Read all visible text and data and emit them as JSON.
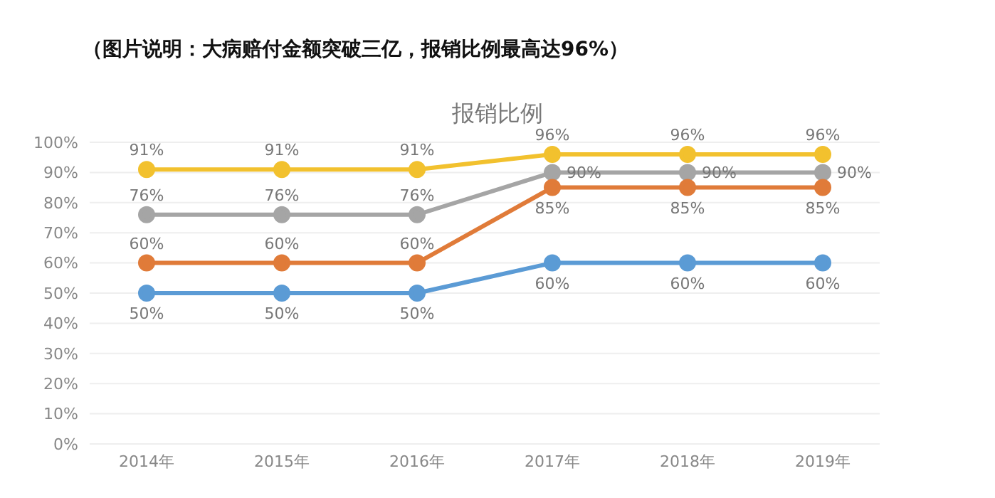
{
  "chart_data": {
    "type": "line",
    "title": "报销比例",
    "annotations": [
      "（图片说明：大病赔付金额突破三亿，报销比例最高达96%）"
    ],
    "categories": [
      "2014年",
      "2015年",
      "2016年",
      "2017年",
      "2018年",
      "2019年"
    ],
    "series": [
      {
        "color": "#f2c12e",
        "values": [
          91,
          91,
          91,
          96,
          96,
          96
        ],
        "value_labels": [
          "91%",
          "91%",
          "91%",
          "96%",
          "96%",
          "96%"
        ]
      },
      {
        "color": "#a5a5a5",
        "values": [
          76,
          76,
          76,
          90,
          90,
          90
        ],
        "value_labels": [
          "76%",
          "76%",
          "76%",
          "90%",
          "90%",
          "90%"
        ]
      },
      {
        "color": "#e07b39",
        "values": [
          60,
          60,
          60,
          85,
          85,
          85
        ],
        "value_labels": [
          "60%",
          "60%",
          "60%",
          "85%",
          "85%",
          "85%"
        ]
      },
      {
        "color": "#5b9bd5",
        "values": [
          50,
          50,
          50,
          60,
          60,
          60
        ],
        "value_labels": [
          "50%",
          "50%",
          "50%",
          "60%",
          "60%",
          "60%"
        ]
      }
    ],
    "ylim": [
      0,
      100
    ],
    "yticks": [
      {
        "value": 0,
        "label": "0%"
      },
      {
        "value": 10,
        "label": "10%"
      },
      {
        "value": 20,
        "label": "20%"
      },
      {
        "value": 30,
        "label": "30%"
      },
      {
        "value": 40,
        "label": "40%"
      },
      {
        "value": 50,
        "label": "50%"
      },
      {
        "value": 60,
        "label": "60%"
      },
      {
        "value": 70,
        "label": "70%"
      },
      {
        "value": 80,
        "label": "80%"
      },
      {
        "value": 90,
        "label": "90%"
      },
      {
        "value": 100,
        "label": "100%"
      }
    ],
    "grid": "y",
    "marker": "circle",
    "line_style": "solid"
  }
}
